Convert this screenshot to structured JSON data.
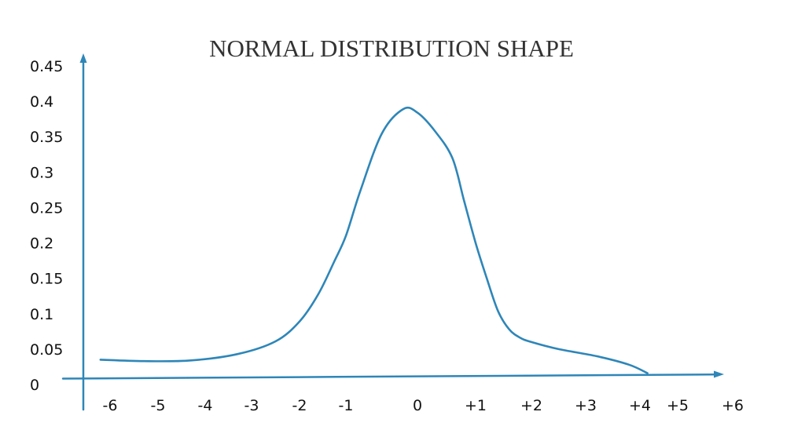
{
  "chart_data": {
    "type": "line",
    "title": "NORMAL DISTRIBUTION SHAPE",
    "xlabel": "",
    "ylabel": "",
    "x_ticks": [
      "-6",
      "-5",
      "-4",
      "-3",
      "-2",
      "-1",
      "0",
      "+1",
      "+2",
      "+3",
      "+4",
      "+5",
      "+6"
    ],
    "y_ticks": [
      "0",
      "0.05",
      "0.1",
      "0.15",
      "0.2",
      "0.25",
      "0.3",
      "0.35",
      "0.4",
      "0.45"
    ],
    "xlim": [
      -6,
      6
    ],
    "ylim": [
      0,
      0.45
    ],
    "grid": false,
    "legend": "none",
    "series": [
      {
        "x": [
          -6.2,
          -5.3,
          -4.3,
          -3.3,
          -2.5,
          -2.0,
          -1.6,
          -1.25,
          -1.0,
          -0.8,
          -0.5,
          -0.2,
          0.0,
          0.3,
          0.6,
          0.8,
          1.0,
          1.2,
          1.4,
          1.6,
          1.8,
          2.0,
          2.5,
          3.2,
          3.8,
          4.2
        ],
        "y": [
          0.025,
          0.023,
          0.024,
          0.033,
          0.051,
          0.079,
          0.117,
          0.164,
          0.2,
          0.263,
          0.344,
          0.379,
          0.374,
          0.348,
          0.31,
          0.25,
          0.19,
          0.14,
          0.094,
          0.068,
          0.056,
          0.05,
          0.04,
          0.03,
          0.018,
          0.006
        ],
        "color": "#2e86b8"
      }
    ],
    "colors": {
      "axis": "#2e86b8",
      "curve": "#2e86b8"
    }
  }
}
